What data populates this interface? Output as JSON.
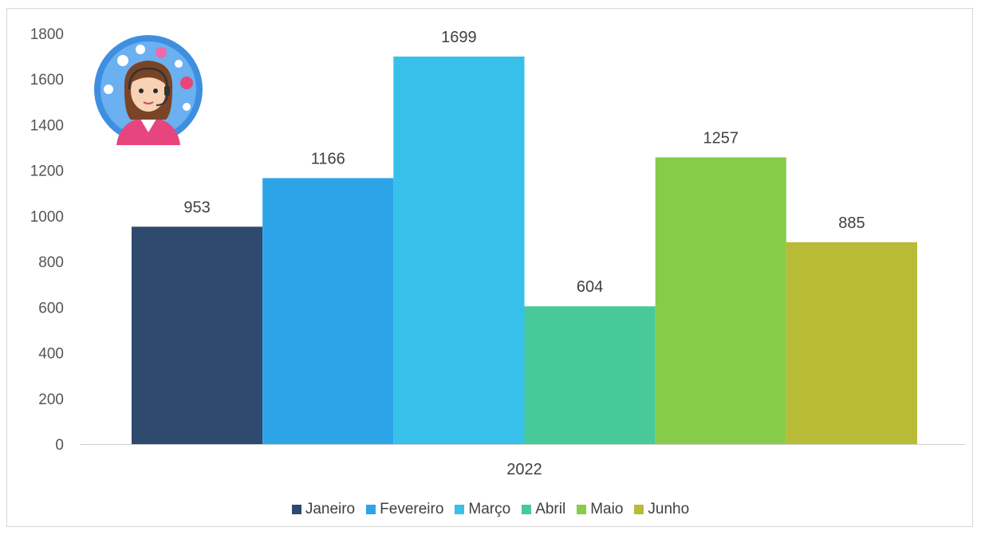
{
  "chart_data": {
    "type": "bar",
    "categories": [
      "2022"
    ],
    "series": [
      {
        "name": "Janeiro",
        "values": [
          953
        ],
        "color": "#2e4a6e"
      },
      {
        "name": "Fevereiro",
        "values": [
          1166
        ],
        "color": "#2da4e8"
      },
      {
        "name": "Março",
        "values": [
          1699
        ],
        "color": "#36c0ea"
      },
      {
        "name": "Abril",
        "values": [
          604
        ],
        "color": "#48c99a"
      },
      {
        "name": "Maio",
        "values": [
          1257
        ],
        "color": "#86cc4a"
      },
      {
        "name": "Junho",
        "values": [
          885
        ],
        "color": "#b8bb36"
      }
    ],
    "ylim": [
      0,
      1800
    ],
    "yticks": [
      0,
      200,
      400,
      600,
      800,
      1000,
      1200,
      1400,
      1600,
      1800
    ],
    "grid": false,
    "legend_position": "bottom"
  },
  "avatar": {
    "icon": "customer-support-agent-icon"
  }
}
